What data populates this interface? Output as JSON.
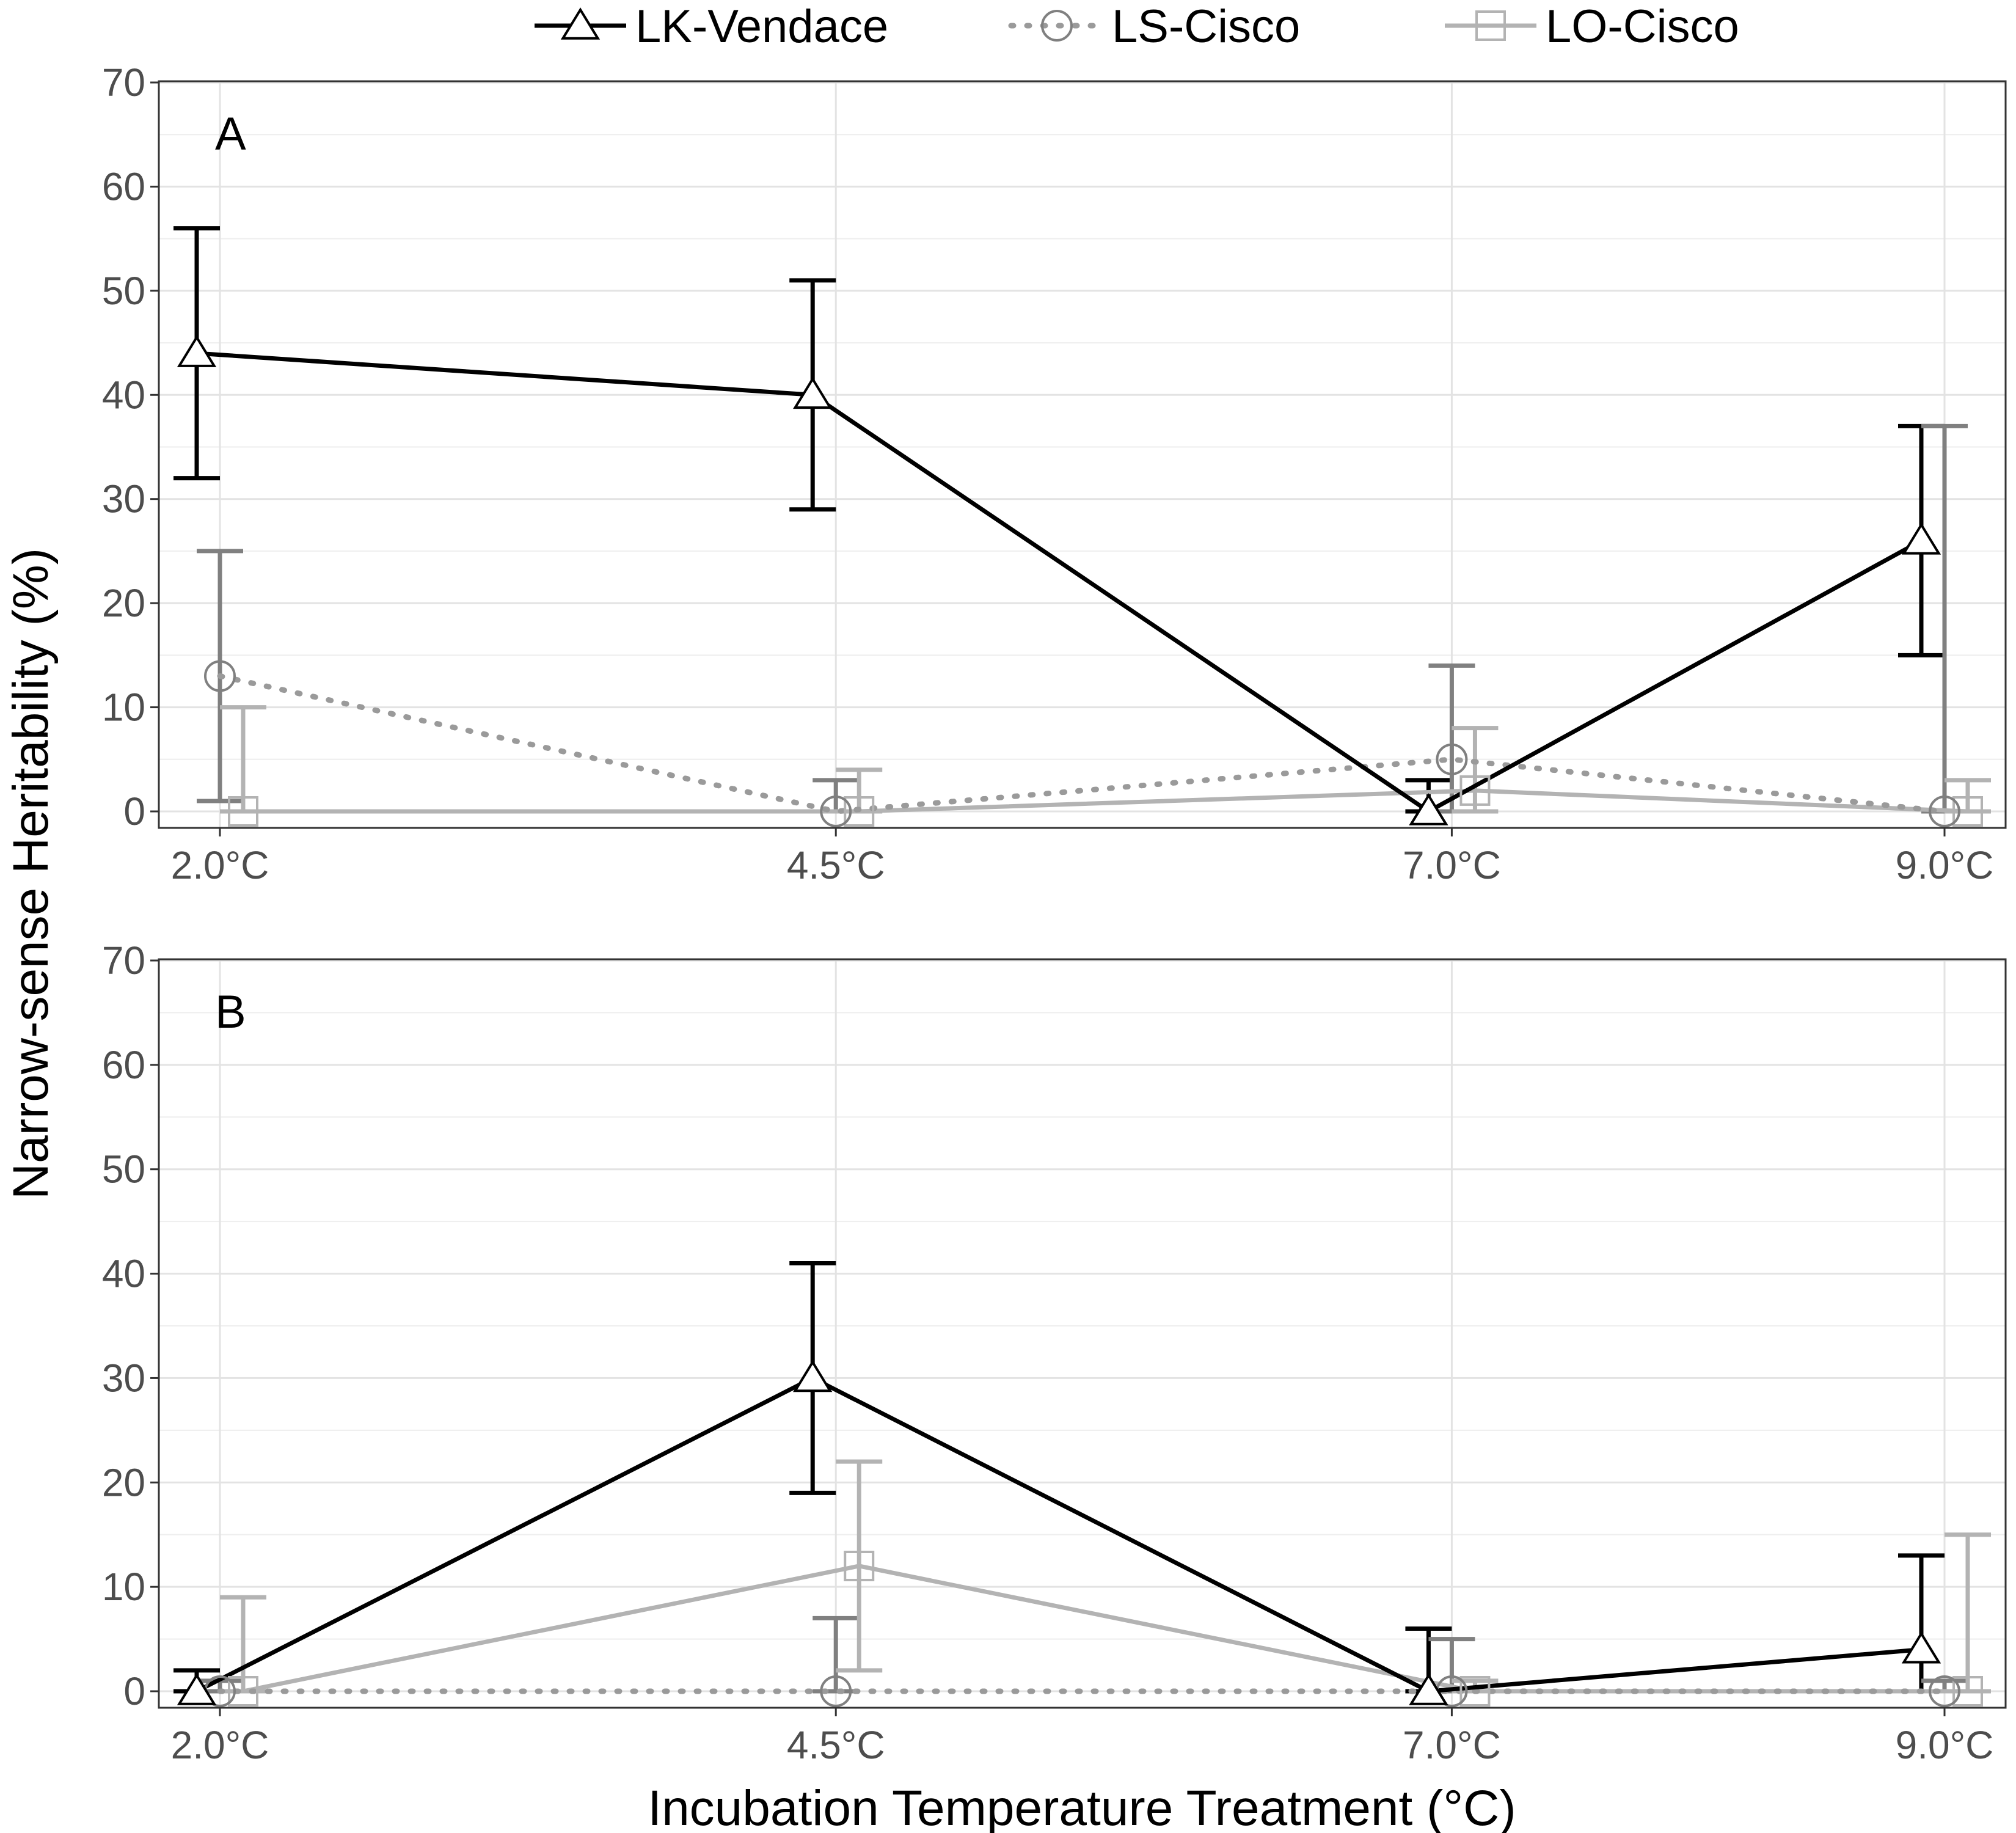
{
  "chart_data": [
    {
      "type": "line",
      "panel_label": "A",
      "categories": [
        "2.0°C",
        "4.5°C",
        "7.0°C",
        "9.0°C"
      ],
      "x": [
        2.0,
        4.5,
        7.0,
        9.0
      ],
      "ylim": [
        0,
        70
      ],
      "yticks": [
        "0",
        "10",
        "20",
        "30",
        "40",
        "50",
        "60",
        "70"
      ],
      "grid": true,
      "series": [
        {
          "name": "LK-Vendace",
          "values": [
            44,
            40,
            0,
            26
          ],
          "lower": [
            32,
            29,
            0,
            15
          ],
          "upper": [
            56,
            51,
            3,
            37
          ]
        },
        {
          "name": "LS-Cisco",
          "values": [
            13,
            0,
            5,
            0
          ],
          "lower": [
            1,
            0,
            0,
            0
          ],
          "upper": [
            25,
            3,
            14,
            37
          ]
        },
        {
          "name": "LO-Cisco",
          "values": [
            0,
            0,
            2,
            0
          ],
          "lower": [
            0,
            0,
            0,
            0
          ],
          "upper": [
            10,
            4,
            8,
            3
          ]
        }
      ]
    },
    {
      "type": "line",
      "panel_label": "B",
      "categories": [
        "2.0°C",
        "4.5°C",
        "7.0°C",
        "9.0°C"
      ],
      "x": [
        2.0,
        4.5,
        7.0,
        9.0
      ],
      "ylim": [
        0,
        70
      ],
      "yticks": [
        "0",
        "10",
        "20",
        "30",
        "40",
        "50",
        "60",
        "70"
      ],
      "grid": true,
      "series": [
        {
          "name": "LK-Vendace",
          "values": [
            0,
            30,
            0,
            4
          ],
          "lower": [
            0,
            19,
            0,
            0
          ],
          "upper": [
            2,
            41,
            6,
            13
          ]
        },
        {
          "name": "LS-Cisco",
          "values": [
            0,
            0,
            0,
            0
          ],
          "lower": [
            0,
            0,
            0,
            0
          ],
          "upper": [
            1,
            7,
            5,
            1
          ]
        },
        {
          "name": "LO-Cisco",
          "values": [
            0,
            12,
            0,
            0
          ],
          "lower": [
            0,
            2,
            0,
            0
          ],
          "upper": [
            9,
            22,
            1,
            15
          ]
        }
      ]
    }
  ],
  "ylabel": "Narrow-sense Heritability (%)",
  "xlabel": "Incubation Temperature Treatment (°C)",
  "legend": {
    "position": "top-center",
    "entries": [
      {
        "name": "LK-Vendace",
        "color": "#000000",
        "marker": "triangle",
        "linestyle": "solid"
      },
      {
        "name": "LS-Cisco",
        "color": "#808080",
        "marker": "circle",
        "linestyle": "dotted"
      },
      {
        "name": "LO-Cisco",
        "color": "#b3b3b3",
        "marker": "square",
        "linestyle": "solid"
      }
    ]
  },
  "colors": {
    "LK-Vendace": "#000000",
    "LS-Cisco": "#808080",
    "LS-Cisco-line": "#9a9a9a",
    "LO-Cisco": "#b3b3b3",
    "grid_major": "#e3e3e3",
    "grid_minor": "#eeeeee",
    "panel_border": "#333333"
  }
}
